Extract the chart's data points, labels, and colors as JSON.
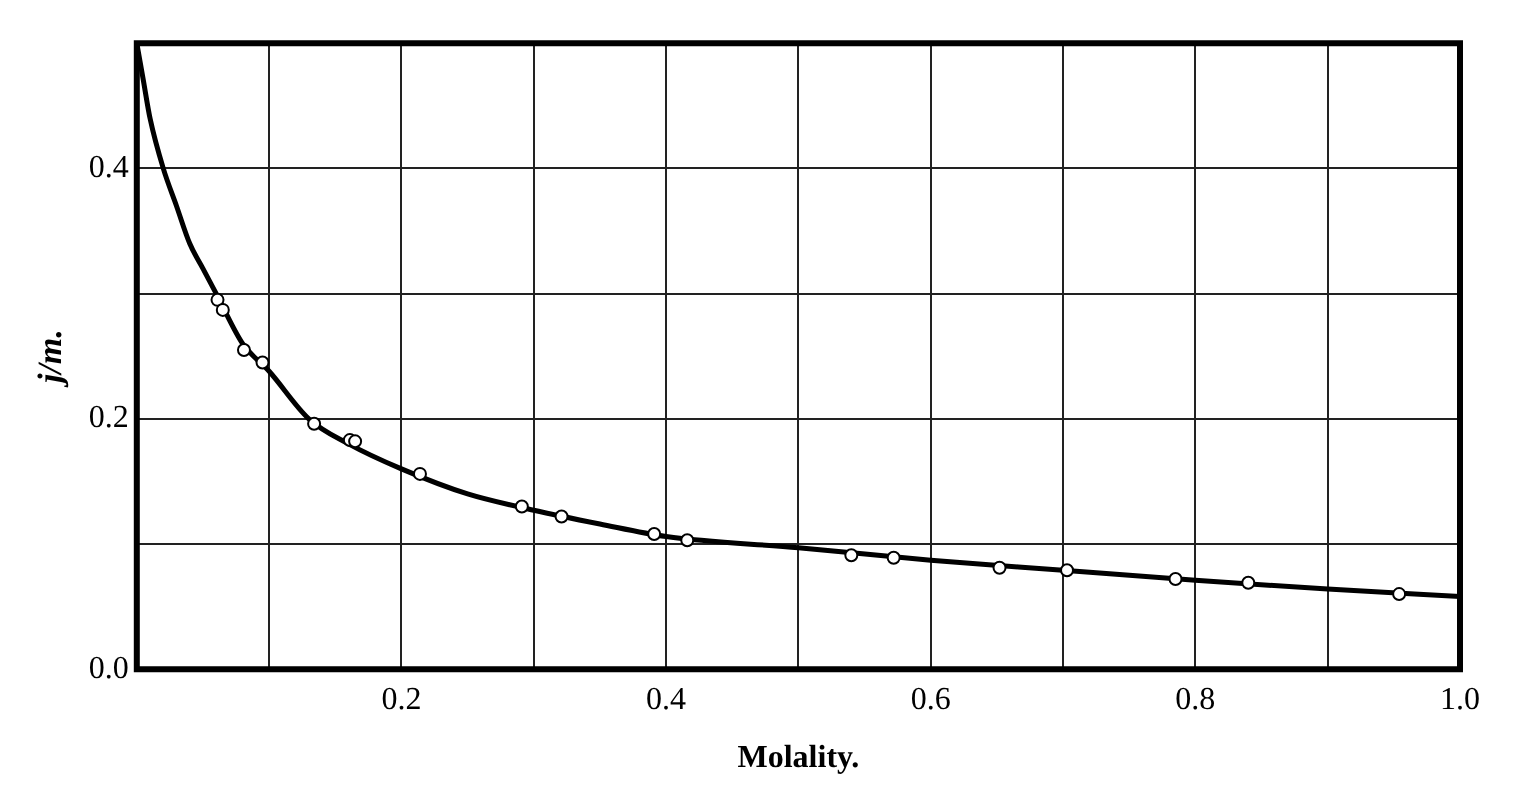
{
  "chart_data": {
    "type": "scatter",
    "xlabel": "Molality.",
    "ylabel": "j/m.",
    "xlim": [
      0,
      1.0
    ],
    "ylim": [
      0,
      0.5
    ],
    "xticks": [
      {
        "value": 0,
        "label": null
      },
      {
        "value": 0.1,
        "label": null
      },
      0.2,
      {
        "value": 0.3,
        "label": null
      },
      0.4,
      {
        "value": 0.5,
        "label": null
      },
      0.6,
      {
        "value": 0.7,
        "label": null
      },
      0.8,
      {
        "value": 0.9,
        "label": null
      },
      {
        "value": 1.0,
        "label": "1.0"
      }
    ],
    "yticks": [
      {
        "value": 0,
        "label": "0.0"
      },
      {
        "value": 0.1,
        "label": null
      },
      0.2,
      {
        "value": 0.3,
        "label": null
      },
      0.4,
      {
        "value": 0.5,
        "label": null
      }
    ],
    "grid": true,
    "legend": false,
    "marker": "circle",
    "series": [
      {
        "color": "#000000",
        "x": [
          0.061,
          0.065,
          0.081,
          0.095,
          0.134,
          0.161,
          0.165,
          0.214,
          0.291,
          0.321,
          0.391,
          0.416,
          0.54,
          0.572,
          0.652,
          0.703,
          0.785,
          0.84,
          0.954
        ],
        "values": [
          0.295,
          0.287,
          0.255,
          0.245,
          0.196,
          0.183,
          0.182,
          0.156,
          0.13,
          0.122,
          0.108,
          0.103,
          0.091,
          0.089,
          0.081,
          0.079,
          0.072,
          0.069,
          0.06
        ]
      },
      {
        "type": "line",
        "color": "#000000",
        "marker": "none",
        "x": [
          0,
          0.005,
          0.01,
          0.02,
          0.03,
          0.04,
          0.05,
          0.06,
          0.08,
          0.1,
          0.13,
          0.16,
          0.2,
          0.25,
          0.3,
          0.35,
          0.4,
          0.5,
          0.6,
          0.7,
          0.8,
          0.9,
          1.0
        ],
        "values": [
          0.5,
          0.47,
          0.44,
          0.4,
          0.37,
          0.34,
          0.32,
          0.3,
          0.26,
          0.238,
          0.2,
          0.18,
          0.16,
          0.14,
          0.127,
          0.116,
          0.106,
          0.097,
          0.087,
          0.079,
          0.071,
          0.064,
          0.058
        ]
      }
    ]
  }
}
